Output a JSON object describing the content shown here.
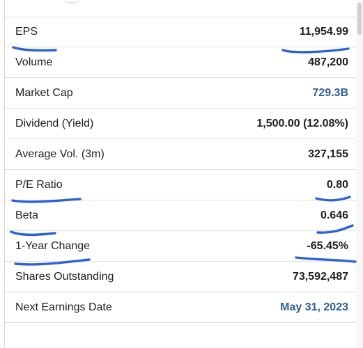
{
  "stats": [
    {
      "label": "EPS",
      "value": "11,954.99"
    },
    {
      "label": "Volume",
      "value": "487,200"
    },
    {
      "label": "Market Cap",
      "value": "729.3B"
    },
    {
      "label": "Dividend (Yield)",
      "value": "1,500.00 (12.08%)"
    },
    {
      "label": "Average Vol. (3m)",
      "value": "327,155"
    },
    {
      "label": "P/E Ratio",
      "value": "0.80"
    },
    {
      "label": "Beta",
      "value": "0.646"
    },
    {
      "label": "1-Year Change",
      "value": "-65.45%"
    },
    {
      "label": "Shares Outstanding",
      "value": "73,592,487"
    },
    {
      "label": "Next Earnings Date",
      "value": "May 31, 2023"
    }
  ],
  "colors": {
    "text": "#1f1f1f",
    "link_value": "#2a5f95",
    "divider": "#dedede",
    "annotation_ink": "#2c62d8"
  },
  "annotations": [
    {
      "target": "EPS",
      "marks": [
        "label-underline",
        "value-underline"
      ]
    },
    {
      "target": "P/E Ratio",
      "marks": [
        "label-underline",
        "value-underline"
      ]
    },
    {
      "target": "Beta",
      "marks": [
        "label-underline",
        "value-underline"
      ]
    },
    {
      "target": "1-Year Change",
      "marks": [
        "label-underline",
        "value-underline"
      ]
    }
  ]
}
